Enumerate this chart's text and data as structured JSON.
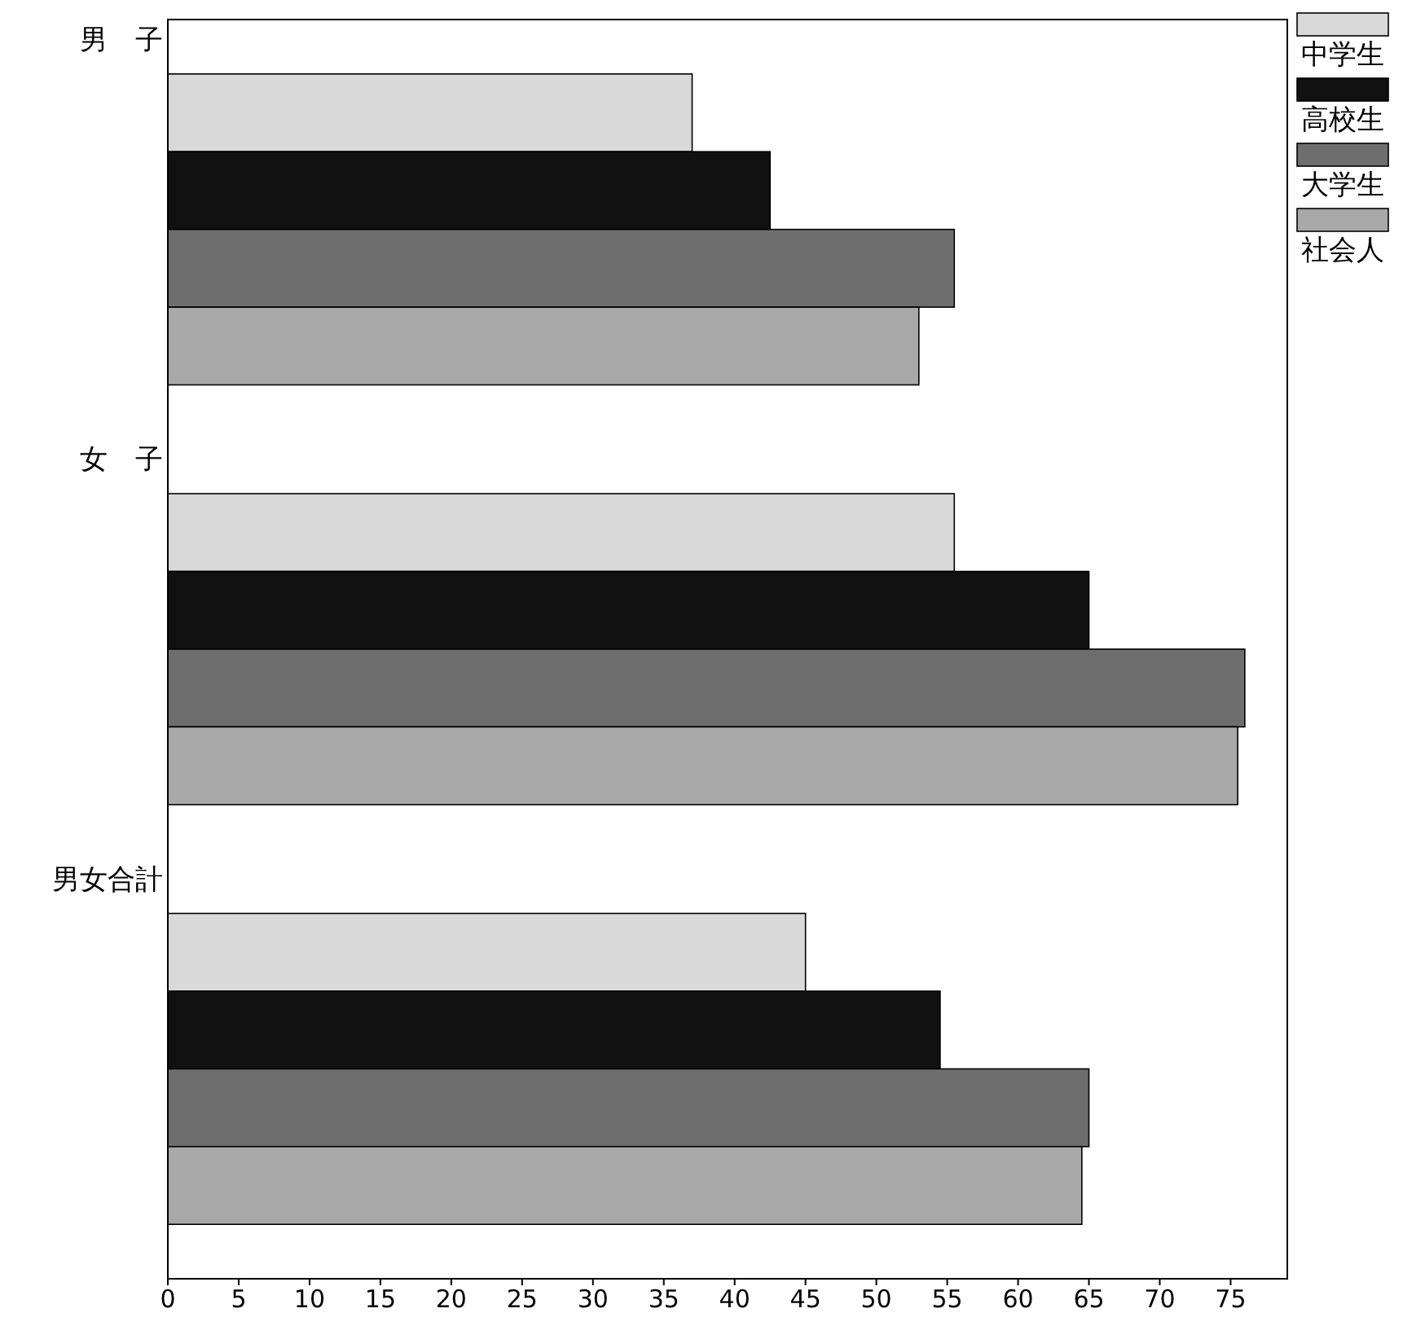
{
  "chart_data": {
    "type": "bar",
    "orientation": "horizontal",
    "categories": [
      "男　子",
      "女　子",
      "男女合計"
    ],
    "series": [
      {
        "name": "中学生",
        "color": "#d9d9d9",
        "values": [
          37,
          55.5,
          45
        ]
      },
      {
        "name": "高校生",
        "color": "#111111",
        "values": [
          42.5,
          65,
          54.5
        ]
      },
      {
        "name": "大学生",
        "color": "#6e6e6e",
        "values": [
          55.5,
          76,
          65
        ]
      },
      {
        "name": "社会人",
        "color": "#a8a8a8",
        "values": [
          53,
          75.5,
          64.5
        ]
      }
    ],
    "xlim": [
      0,
      79
    ],
    "xticks": [
      0,
      5,
      10,
      15,
      20,
      25,
      30,
      35,
      40,
      45,
      50,
      55,
      60,
      65,
      70,
      75
    ],
    "grid": false,
    "legend": "top right"
  }
}
